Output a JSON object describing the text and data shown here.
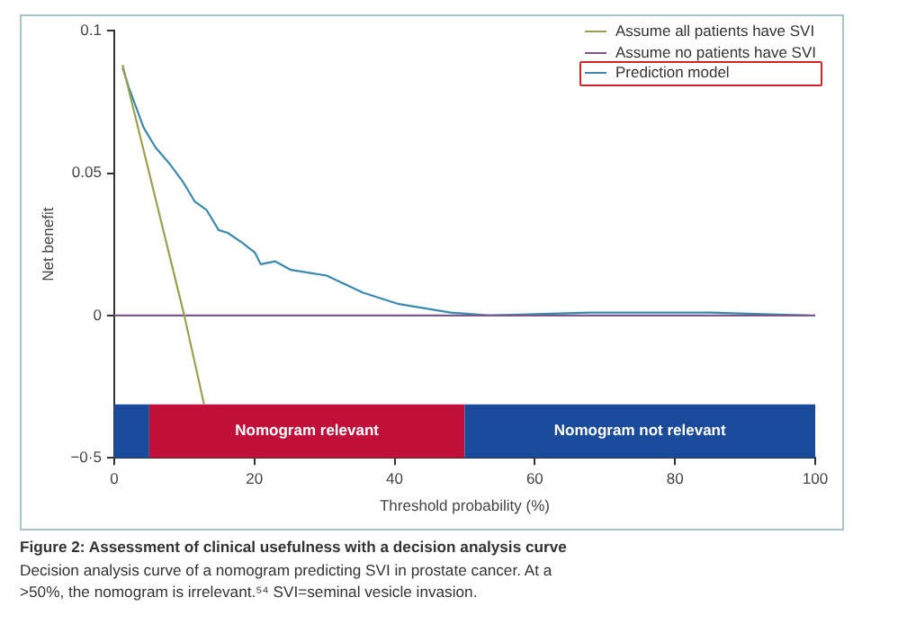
{
  "chart_data": {
    "type": "line",
    "xlabel": "Threshold probability (%)",
    "ylabel": "Net benefit",
    "xlim": [
      0,
      100
    ],
    "xticks": [
      0,
      20,
      40,
      60,
      80,
      100
    ],
    "ylim": [
      -0.05,
      0.1
    ],
    "yticks": [
      {
        "value": -0.05,
        "label": "−0·5"
      },
      0,
      0.05,
      0.1
    ],
    "series": [
      {
        "name": "Assume all patients have SVI",
        "color": "#9aa050",
        "x": [
          1.2,
          10,
          12.8
        ],
        "values": [
          0.088,
          0,
          -0.031
        ]
      },
      {
        "name": "Assume no patients have SVI",
        "color": "#7a5a8a",
        "x": [
          0,
          100
        ],
        "values": [
          0,
          0
        ]
      },
      {
        "name": "Prediction model",
        "color": "#3a8ab0",
        "x": [
          1.2,
          2.1,
          4.2,
          5.9,
          8,
          9.8,
          11.5,
          13.2,
          14.9,
          16.2,
          18.3,
          20.1,
          20.9,
          23,
          25.2,
          27.8,
          30.3,
          32.9,
          35.5,
          40.6,
          48,
          53.5,
          68,
          85,
          99
        ],
        "values": [
          0.087,
          0.08,
          0.066,
          0.059,
          0.053,
          0.047,
          0.04,
          0.037,
          0.03,
          0.029,
          0.0255,
          0.022,
          0.018,
          0.019,
          0.016,
          0.015,
          0.014,
          0.011,
          0.008,
          0.004,
          0.001,
          0,
          0.001,
          0.001,
          0
        ]
      }
    ],
    "bands": [
      {
        "axis": "x",
        "from": 0,
        "to": 5,
        "label": null,
        "color": "#1a4a9a"
      },
      {
        "axis": "x",
        "from": 5,
        "to": 50,
        "label": "Nomogram relevant",
        "color": "#c0103a"
      },
      {
        "axis": "x",
        "from": 50,
        "to": 100,
        "label": "Nomogram not relevant",
        "color": "#1a4a9a"
      }
    ],
    "legend": "top right",
    "grid": false,
    "marker": "none",
    "line_style": "solid",
    "annotations": [
      "Figure 2: Assessment of clinical usefulness with a decision analysis curve",
      "Decision analysis curve of a nomogram predicting SVI in prostate cancer. At a",
      ">50%, the nomogram is irrelevant.⁵⁴ SVI=seminal vesicle invasion."
    ]
  }
}
